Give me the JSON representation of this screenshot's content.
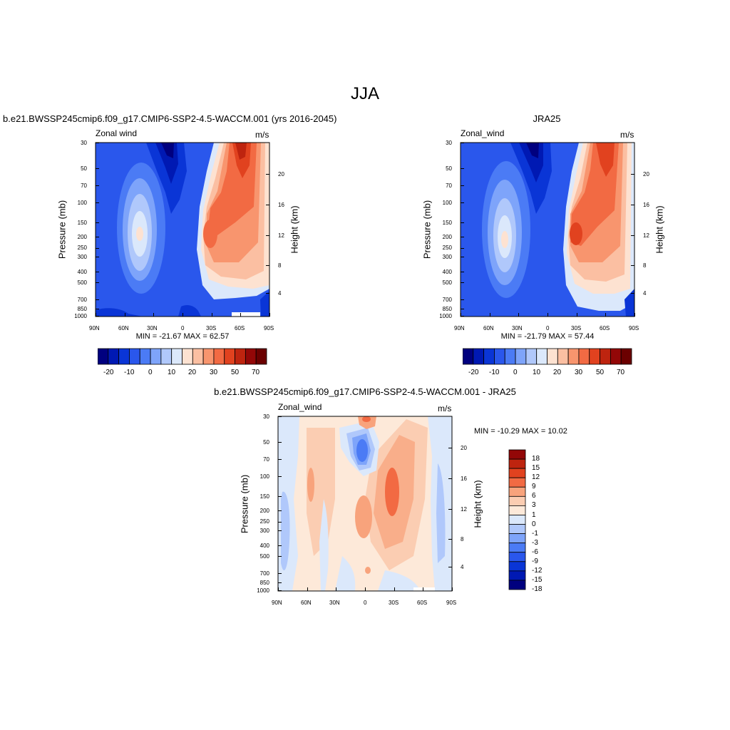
{
  "page_title": "JJA",
  "palette": {
    "abs": [
      "#00007f",
      "#0019b3",
      "#0a35d6",
      "#2a57ec",
      "#4b7bf5",
      "#7ea4fa",
      "#b0c8fb",
      "#dbe8fb",
      "#fde2d1",
      "#fbbfa2",
      "#f8956e",
      "#f26a43",
      "#e1421f",
      "#be240f",
      "#930707",
      "#6b0000"
    ],
    "diff": [
      "#00007f",
      "#0019b3",
      "#0a35d6",
      "#2a57ec",
      "#4b7bf5",
      "#7ea4fa",
      "#b0c8fb",
      "#dbe8fb",
      "#fde9d9",
      "#fbcdb2",
      "#f8a37c",
      "#f26a43",
      "#e1421f",
      "#be240f",
      "#930707"
    ]
  },
  "chart_data": [
    {
      "type": "heatmap",
      "title": "b.e21.BWSSP245cmip6.f09_g17.CMIP6-SSP2-4.5-WACCM.001 (yrs 2016-2045)",
      "left_string": "Zonal wind",
      "right_string": "m/s",
      "xlabel": "",
      "ylabel": "Pressure (mb)",
      "y2label": "Height (km)",
      "x_ticks": [
        "90N",
        "60N",
        "30N",
        "0",
        "30S",
        "60S",
        "90S"
      ],
      "xlim": [
        90,
        -90
      ],
      "y_ticks": [
        "30",
        "50",
        "70",
        "100",
        "150",
        "200",
        "250",
        "300",
        "400",
        "500",
        "700",
        "850",
        "1000"
      ],
      "ylim": [
        1000,
        30
      ],
      "y_scale": "log",
      "y2_ticks": [
        "20",
        "16",
        "12",
        "8",
        "4"
      ],
      "stats": "MIN = -21.67  MAX =  62.57",
      "min": -21.67,
      "max": 62.57,
      "colorbar": {
        "orientation": "horizontal",
        "labels": [
          "-20",
          "-10",
          "0",
          "10",
          "20",
          "30",
          "50",
          "70"
        ]
      }
    },
    {
      "type": "heatmap",
      "title": "JRA25",
      "left_string": "Zonal_wind",
      "right_string": "m/s",
      "xlabel": "",
      "ylabel": "Pressure (mb)",
      "y2label": "Height (km)",
      "x_ticks": [
        "90N",
        "60N",
        "30N",
        "0",
        "30S",
        "60S",
        "90S"
      ],
      "xlim": [
        90,
        -90
      ],
      "y_ticks": [
        "30",
        "50",
        "70",
        "100",
        "150",
        "200",
        "250",
        "300",
        "400",
        "500",
        "700",
        "850",
        "1000"
      ],
      "ylim": [
        1000,
        30
      ],
      "y_scale": "log",
      "y2_ticks": [
        "20",
        "16",
        "12",
        "8",
        "4"
      ],
      "stats": "MIN = -21.79  MAX =  57.44",
      "min": -21.79,
      "max": 57.44,
      "colorbar": {
        "orientation": "horizontal",
        "labels": [
          "-20",
          "-10",
          "0",
          "10",
          "20",
          "30",
          "50",
          "70"
        ]
      }
    },
    {
      "type": "heatmap",
      "title": "b.e21.BWSSP245cmip6.f09_g17.CMIP6-SSP2-4.5-WACCM.001 - JRA25",
      "left_string": "Zonal_wind",
      "right_string": "m/s",
      "xlabel": "",
      "ylabel": "Pressure (mb)",
      "y2label": "Height (km)",
      "x_ticks": [
        "90N",
        "60N",
        "30N",
        "0",
        "30S",
        "60S",
        "90S"
      ],
      "xlim": [
        90,
        -90
      ],
      "y_ticks": [
        "30",
        "50",
        "70",
        "100",
        "150",
        "200",
        "250",
        "300",
        "400",
        "500",
        "700",
        "850",
        "1000"
      ],
      "ylim": [
        1000,
        30
      ],
      "y_scale": "log",
      "y2_ticks": [
        "20",
        "16",
        "12",
        "8",
        "4"
      ],
      "stats": "MIN = -10.29  MAX =  10.02",
      "min": -10.29,
      "max": 10.02,
      "colorbar": {
        "orientation": "vertical",
        "labels": [
          "18",
          "15",
          "12",
          "9",
          "6",
          "3",
          "1",
          "0",
          "-1",
          "-3",
          "-6",
          "-9",
          "-12",
          "-15",
          "-18"
        ]
      }
    }
  ]
}
